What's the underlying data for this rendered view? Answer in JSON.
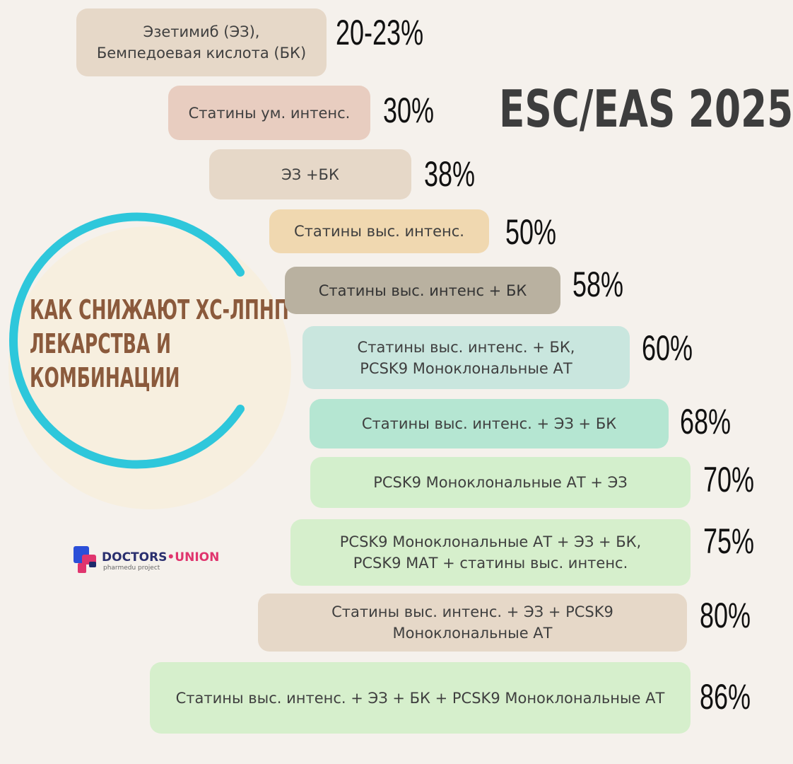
{
  "title": "ESC/EAS 2025",
  "heading": {
    "lines": [
      "КАК СНИЖАЮТ ХС-ЛПНП",
      "ЛЕКАРСТВА И",
      "КОМБИНАЦИИ"
    ]
  },
  "logo": {
    "word1": "DOCTORS",
    "separator": "•",
    "word2": "UNION",
    "tagline": "pharmedu project"
  },
  "items": [
    {
      "lines": [
        "Эзетимиб (ЭЗ),",
        "Бемпедоевая кислота (БК)"
      ],
      "value": "20-23%"
    },
    {
      "lines": [
        "Статины ум. интенс."
      ],
      "value": "30%"
    },
    {
      "lines": [
        "ЭЗ +БК"
      ],
      "value": "38%"
    },
    {
      "lines": [
        "Статины выс. интенс."
      ],
      "value": "50%"
    },
    {
      "lines": [
        "Статины выс. интенс + БК"
      ],
      "value": "58%"
    },
    {
      "lines": [
        "Статины выс. интенс. + БК,",
        "PCSK9 Моноклональные АТ"
      ],
      "value": "60%"
    },
    {
      "lines": [
        "Статины выс. интенс. + ЭЗ + БК"
      ],
      "value": "68%"
    },
    {
      "lines": [
        "PCSK9 Моноклональные АТ + ЭЗ"
      ],
      "value": "70%"
    },
    {
      "lines": [
        "PCSK9 Моноклональные АТ + ЭЗ + БК,",
        "PCSK9 МАТ + статины выс. интенс."
      ],
      "value": "75%"
    },
    {
      "lines": [
        "Статины выс. интенс. + ЭЗ + PCSK9",
        "Моноклональные АТ"
      ],
      "value": "80%"
    },
    {
      "lines": [
        "Статины выс. интенс. + ЭЗ + БК + PCSK9 Моноклональные АТ"
      ],
      "value": "86%"
    }
  ]
}
